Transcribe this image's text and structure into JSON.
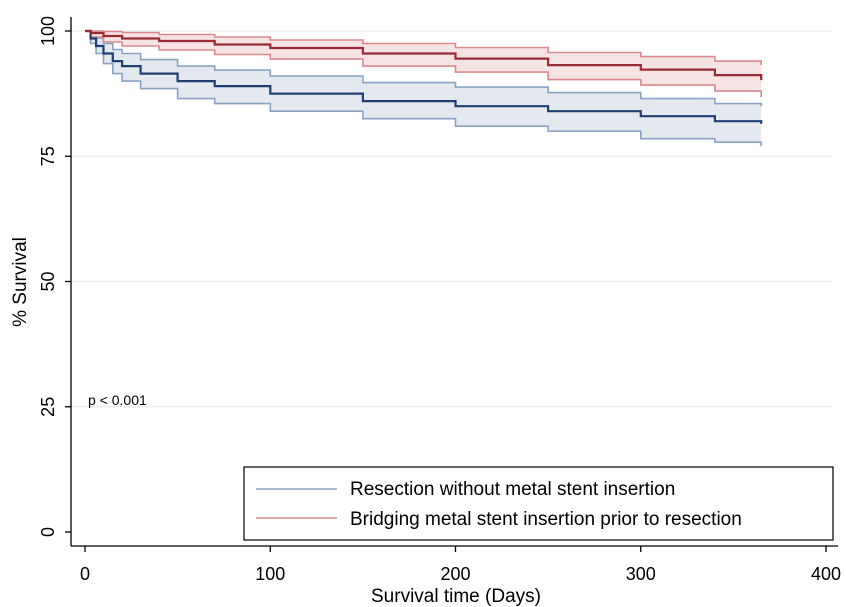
{
  "chart_data": {
    "type": "line",
    "title": "",
    "xlabel": "Survival time (Days)",
    "ylabel": "% Survival",
    "xlim": [
      0,
      400
    ],
    "ylim": [
      0,
      100
    ],
    "xticks": [
      0,
      100,
      200,
      300,
      400
    ],
    "yticks": [
      0,
      25,
      50,
      75,
      100
    ],
    "grid": "horizontal",
    "legend_position": "bottom-right",
    "annotation": "p < 0.001",
    "series": [
      {
        "name": "Resection without metal stent insertion",
        "color": "#1f3f73",
        "band_color": "#8aa3c4",
        "band_fill": "#dfe4ec",
        "x": [
          0,
          3,
          6,
          10,
          15,
          20,
          30,
          50,
          70,
          100,
          150,
          200,
          250,
          300,
          340,
          365
        ],
        "y": [
          100,
          98.5,
          97,
          95.5,
          94,
          93,
          91.5,
          90,
          89,
          87.5,
          86,
          85,
          84,
          83,
          82,
          81.5
        ],
        "lower": [
          100,
          97.5,
          95.5,
          93.5,
          91.5,
          90,
          88.5,
          86.5,
          85.5,
          84,
          82.5,
          81,
          80,
          78.5,
          77.8,
          77
        ],
        "upper": [
          100,
          99.4,
          98.6,
          97.5,
          96.3,
          95.5,
          94.3,
          93,
          92.2,
          91,
          89.7,
          88.8,
          87.7,
          86.5,
          85.5,
          85
        ]
      },
      {
        "name": "Bridging metal stent insertion prior to resection",
        "color": "#9a2a35",
        "band_color": "#d98a8f",
        "band_fill": "#f4dede",
        "x": [
          0,
          3,
          10,
          20,
          40,
          70,
          100,
          150,
          200,
          250,
          300,
          340,
          365
        ],
        "y": [
          100,
          99.6,
          99,
          98.5,
          98,
          97.3,
          96.6,
          95.5,
          94.5,
          93.2,
          92.3,
          91.2,
          90.2
        ],
        "lower": [
          100,
          98.8,
          97.8,
          97,
          96.2,
          95.3,
          94.4,
          93,
          91.8,
          90.3,
          89.2,
          88,
          86.8
        ],
        "upper": [
          100,
          100,
          99.9,
          99.7,
          99.3,
          98.8,
          98.2,
          97.5,
          96.7,
          95.7,
          94.9,
          94,
          93.2
        ]
      }
    ]
  }
}
